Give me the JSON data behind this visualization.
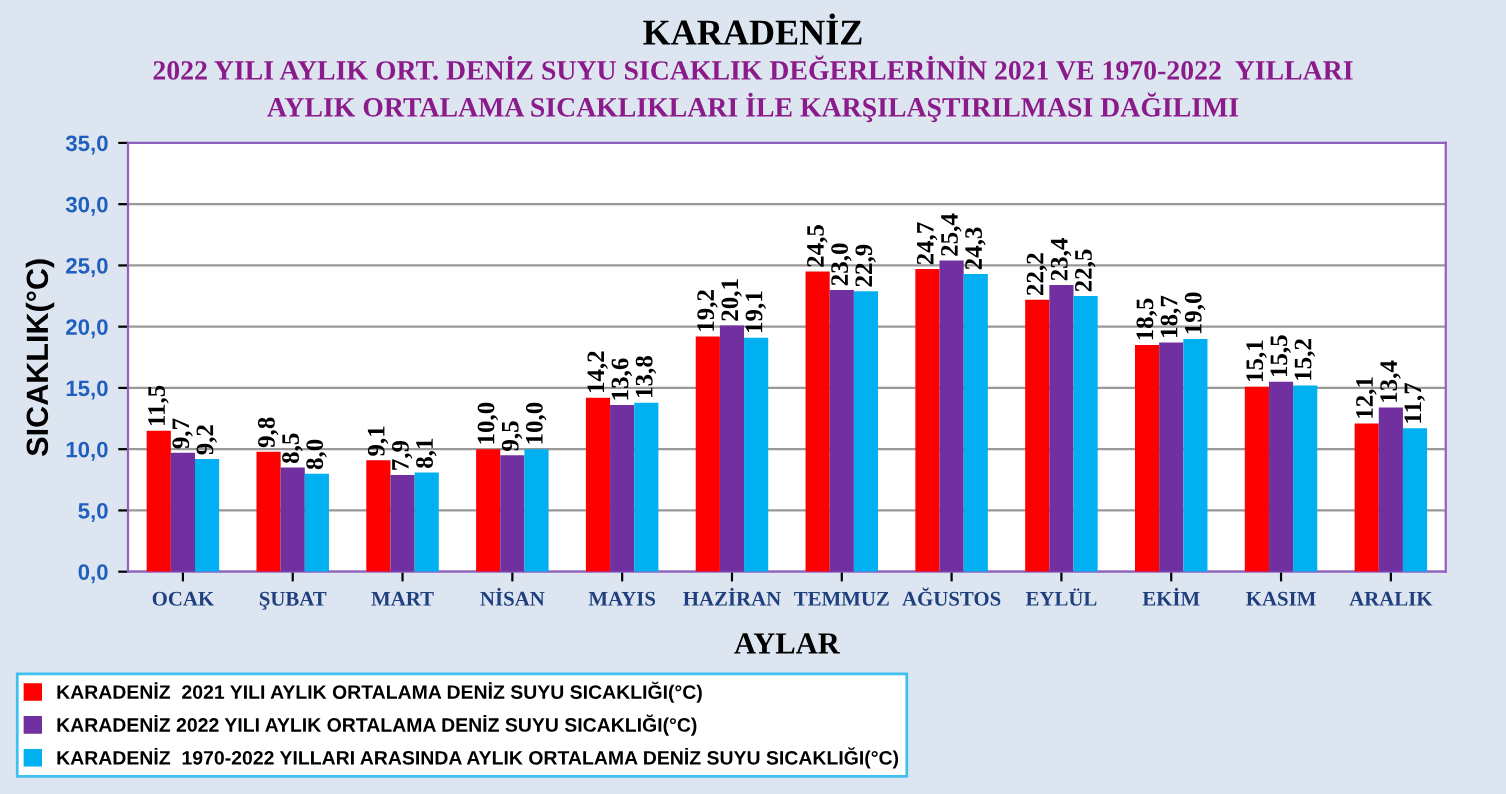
{
  "chart_data": {
    "type": "bar",
    "title": "KARADENİZ",
    "subtitle": "2022 YILI AYLIK ORT. DENİZ SUYU SICAKLIK DEĞERLERİNİN 2021 VE 1970-2022  YILLARI\nAYLIK ORTALAMA SICAKLIKLARI İLE KARŞILAŞTIRILMASI DAĞILIMI",
    "xlabel": "AYLAR",
    "ylabel": "SICAKLIK(°C)",
    "categories": [
      "OCAK",
      "ŞUBAT",
      "MART",
      "NİSAN",
      "MAYIS",
      "HAZİRAN",
      "TEMMUZ",
      "AĞUSTOS",
      "EYLÜL",
      "EKİM",
      "KASIM",
      "ARALIK"
    ],
    "series": [
      {
        "name": "KARADENİZ  2021 YILI AYLIK ORTALAMA DENİZ SUYU SICAKLIĞI(°C)",
        "color": "#ff0000",
        "values": [
          11.5,
          9.8,
          9.1,
          10.0,
          14.2,
          19.2,
          24.5,
          24.7,
          22.2,
          18.5,
          15.1,
          12.1
        ],
        "value_labels": [
          "11,5",
          "9,8",
          "9,1",
          "10,0",
          "14,2",
          "19,2",
          "24,5",
          "24,7",
          "22,2",
          "18,5",
          "15,1",
          "12,1"
        ]
      },
      {
        "name": "KARADENİZ 2022 YILI AYLIK ORTALAMA DENİZ SUYU SICAKLIĞI(°C)",
        "color": "#7030a0",
        "values": [
          9.7,
          8.5,
          7.9,
          9.5,
          13.6,
          20.1,
          23.0,
          25.4,
          23.4,
          18.7,
          15.5,
          13.4
        ],
        "value_labels": [
          "9,7",
          "8,5",
          "7,9",
          "9,5",
          "13,6",
          "20,1",
          "23,0",
          "25,4",
          "23,4",
          "18,7",
          "15,5",
          "13,4"
        ]
      },
      {
        "name": "KARADENİZ  1970-2022 YILLARI ARASINDA AYLIK ORTALAMA DENİZ SUYU SICAKLIĞI(°C)",
        "color": "#00b0f0",
        "values": [
          9.2,
          8.0,
          8.1,
          10.0,
          13.8,
          19.1,
          22.9,
          24.3,
          22.5,
          19.0,
          15.2,
          11.7
        ],
        "value_labels": [
          "9,2",
          "8,0",
          "8,1",
          "10,0",
          "13,8",
          "19,1",
          "22,9",
          "24,3",
          "22,5",
          "19,0",
          "15,2",
          "11,7"
        ]
      }
    ],
    "ylim": [
      0,
      35
    ],
    "yticks": [
      {
        "value": 0,
        "label": "0,0"
      },
      {
        "value": 5,
        "label": "5,0"
      },
      {
        "value": 10,
        "label": "10,0"
      },
      {
        "value": 15,
        "label": "15,0"
      },
      {
        "value": 20,
        "label": "20,0"
      },
      {
        "value": 25,
        "label": "25,0"
      },
      {
        "value": 30,
        "label": "30,0"
      },
      {
        "value": 35,
        "label": "35,0"
      }
    ],
    "grid": "y",
    "legend": "bottom left"
  }
}
